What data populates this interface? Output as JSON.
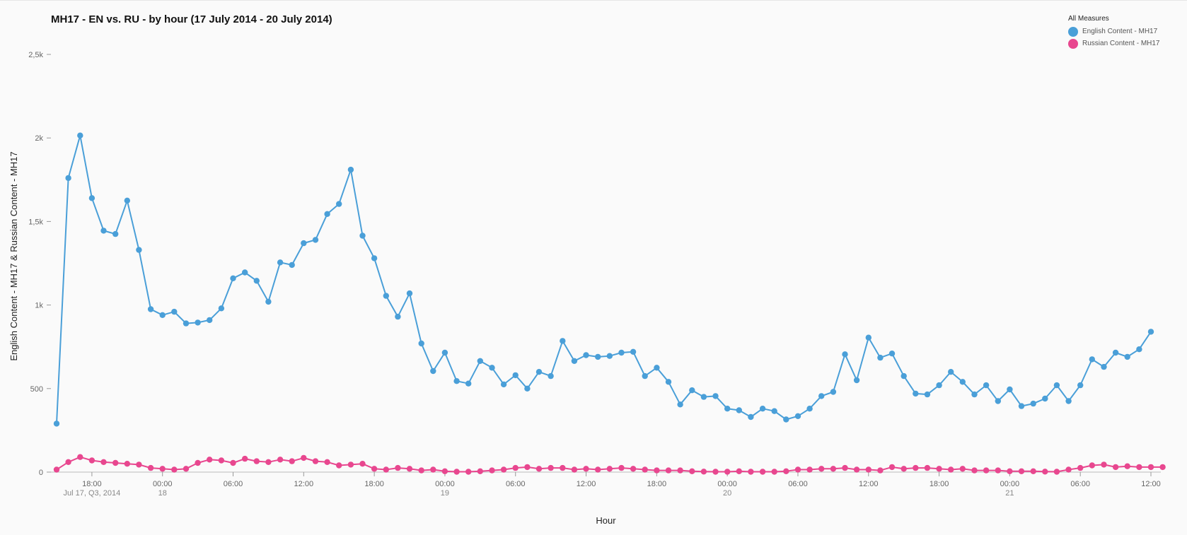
{
  "chart_data": {
    "type": "line",
    "title": "MH17 - EN vs. RU - by hour (17 July 2014 - 20 July 2014)",
    "xlabel": "Hour",
    "ylabel": "English Content - MH17 & Russian Content - MH17",
    "ylim": [
      0,
      2500
    ],
    "y_ticks": [
      {
        "value": 0,
        "label": "0"
      },
      {
        "value": 500,
        "label": "500"
      },
      {
        "value": 1000,
        "label": "1k"
      },
      {
        "value": 1500,
        "label": "1,5k"
      },
      {
        "value": 2000,
        "label": "2k"
      },
      {
        "value": 2500,
        "label": "2,5k"
      }
    ],
    "x_start": "2014-07-17 15:00",
    "x_end": "2014-07-21 12:00",
    "x_ticks": [
      {
        "time": "2014-07-17 18:00",
        "label": "18:00",
        "sub": "Jul 17, Q3, 2014"
      },
      {
        "time": "2014-07-18 00:00",
        "label": "00:00",
        "sub": "18"
      },
      {
        "time": "2014-07-18 06:00",
        "label": "06:00",
        "sub": ""
      },
      {
        "time": "2014-07-18 12:00",
        "label": "12:00",
        "sub": ""
      },
      {
        "time": "2014-07-18 18:00",
        "label": "18:00",
        "sub": ""
      },
      {
        "time": "2014-07-19 00:00",
        "label": "00:00",
        "sub": "19"
      },
      {
        "time": "2014-07-19 06:00",
        "label": "06:00",
        "sub": ""
      },
      {
        "time": "2014-07-19 12:00",
        "label": "12:00",
        "sub": ""
      },
      {
        "time": "2014-07-19 18:00",
        "label": "18:00",
        "sub": ""
      },
      {
        "time": "2014-07-20 00:00",
        "label": "00:00",
        "sub": "20"
      },
      {
        "time": "2014-07-20 06:00",
        "label": "06:00",
        "sub": ""
      },
      {
        "time": "2014-07-20 12:00",
        "label": "12:00",
        "sub": ""
      },
      {
        "time": "2014-07-20 18:00",
        "label": "18:00",
        "sub": ""
      },
      {
        "time": "2014-07-21 00:00",
        "label": "00:00",
        "sub": "21"
      },
      {
        "time": "2014-07-21 06:00",
        "label": "06:00",
        "sub": ""
      },
      {
        "time": "2014-07-21 12:00",
        "label": "12:00",
        "sub": ""
      }
    ],
    "legend": {
      "title": "All Measures",
      "placement": "top-right"
    },
    "grid": false,
    "series": [
      {
        "name": "English Content - MH17",
        "color": "#4a9fd8",
        "values": [
          290,
          1760,
          2015,
          1640,
          1445,
          1425,
          1625,
          1330,
          975,
          940,
          960,
          890,
          895,
          910,
          980,
          1160,
          1195,
          1145,
          1020,
          1255,
          1240,
          1370,
          1390,
          1545,
          1605,
          1810,
          1415,
          1280,
          1055,
          930,
          1070,
          770,
          605,
          715,
          545,
          530,
          665,
          625,
          525,
          580,
          500,
          600,
          575,
          785,
          665,
          700,
          690,
          695,
          715,
          720,
          575,
          625,
          540,
          405,
          490,
          450,
          455,
          380,
          370,
          330,
          380,
          365,
          315,
          335,
          380,
          455,
          480,
          705,
          550,
          805,
          685,
          710,
          575,
          470,
          465,
          520,
          600,
          540,
          465,
          520,
          425,
          495,
          395,
          410,
          440,
          520,
          425,
          520,
          675,
          630,
          715,
          690,
          735,
          840
        ]
      },
      {
        "name": "Russian Content - MH17",
        "color": "#e8478f",
        "values": [
          15,
          60,
          90,
          70,
          60,
          55,
          50,
          45,
          25,
          20,
          15,
          20,
          55,
          75,
          70,
          55,
          80,
          65,
          60,
          75,
          65,
          85,
          65,
          60,
          40,
          45,
          50,
          20,
          15,
          25,
          20,
          10,
          15,
          5,
          2,
          2,
          5,
          10,
          15,
          25,
          30,
          20,
          25,
          25,
          15,
          20,
          15,
          20,
          25,
          20,
          15,
          10,
          10,
          10,
          5,
          3,
          2,
          2,
          5,
          2,
          2,
          2,
          5,
          15,
          15,
          20,
          20,
          25,
          15,
          15,
          10,
          30,
          20,
          25,
          25,
          20,
          15,
          20,
          10,
          10,
          10,
          5,
          5,
          5,
          3,
          2,
          15,
          25,
          40,
          45,
          30,
          35,
          30,
          30,
          30
        ]
      }
    ]
  }
}
